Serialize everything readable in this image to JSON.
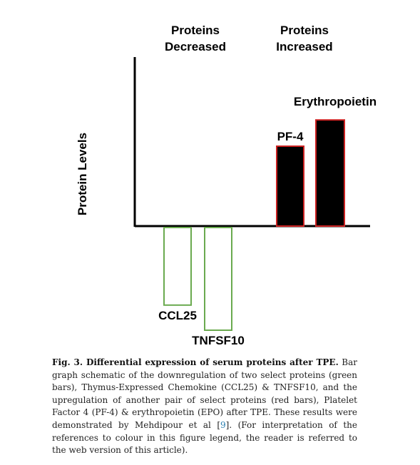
{
  "chart_data": {
    "type": "bar",
    "ylabel": "Protein Levels",
    "group_headers": [
      {
        "id": "decreased",
        "lines": [
          "Proteins",
          "Decreased"
        ]
      },
      {
        "id": "increased",
        "lines": [
          "Proteins",
          "Increased"
        ]
      }
    ],
    "yrange": [
      -1.0,
      1.0
    ],
    "bars": [
      {
        "label": "CCL25",
        "value": -0.68,
        "group": "decreased",
        "color": "#6aaa4f",
        "fill": "#ffffff"
      },
      {
        "label": "TNFSF10",
        "value": -0.9,
        "group": "decreased",
        "color": "#6aaa4f",
        "fill": "#ffffff"
      },
      {
        "label": "PF-4",
        "value": 0.7,
        "group": "increased",
        "color": "#cc2222",
        "fill": "#000000"
      },
      {
        "label": "Erythropoietin",
        "value": 0.93,
        "group": "increased",
        "color": "#cc2222",
        "fill": "#000000"
      }
    ],
    "grid": false
  },
  "caption": {
    "title": "Fig. 3. Differential expression of serum proteins after TPE.",
    "body_before_ref": "Bar graph schematic of the downregulation of two select proteins (green bars), Thymus-Expressed Chemokine (CCL25) & TNFSF10, and the upregulation of another pair of select proteins (red bars), Platelet Factor 4 (PF-4) & erythropoietin (EPO) after TPE. These results were demonstrated by Mehdipour et al [",
    "ref": "9",
    "body_after_ref": "]. (For interpretation of the references to colour in this figure legend, the reader is referred to the web version of this article)."
  }
}
